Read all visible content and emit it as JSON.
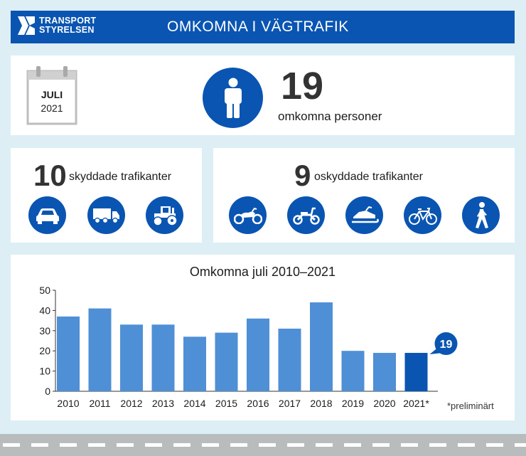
{
  "header": {
    "logo_line1": "TRANSPORT",
    "logo_line2": "STYRELSEN",
    "title": "OMKOMNA I VÄGTRAFIK"
  },
  "summary": {
    "calendar": {
      "month": "JULI",
      "year": "2021",
      "icon": "calendar-icon"
    },
    "person_icon": "person-icon",
    "total": "19",
    "total_label": "omkomna personer"
  },
  "protected": {
    "count": "10",
    "label": "skyddade trafikanter",
    "icons": [
      "car-icon",
      "truck-icon",
      "tractor-icon"
    ]
  },
  "unprotected": {
    "count": "9",
    "label": "oskyddade trafikanter",
    "icons": [
      "motorcycle-icon",
      "moped-icon",
      "snowmobile-icon",
      "bicycle-icon",
      "pedestrian-icon"
    ]
  },
  "colors": {
    "brand": "#0a55b2",
    "bar": "#4f8fd6",
    "bar_highlight": "#0a55b2",
    "background": "#ddeef5"
  },
  "chart_data": {
    "type": "bar",
    "title": "Omkomna juli 2010–2021",
    "categories": [
      "2010",
      "2011",
      "2012",
      "2013",
      "2014",
      "2015",
      "2016",
      "2017",
      "2018",
      "2019",
      "2020",
      "2021*"
    ],
    "values": [
      37,
      41,
      33,
      33,
      27,
      29,
      36,
      31,
      44,
      20,
      19,
      19
    ],
    "ylim": [
      0,
      50
    ],
    "yticks": [
      0,
      10,
      20,
      30,
      40,
      50
    ],
    "callout": "19",
    "note": "*preliminärt"
  }
}
